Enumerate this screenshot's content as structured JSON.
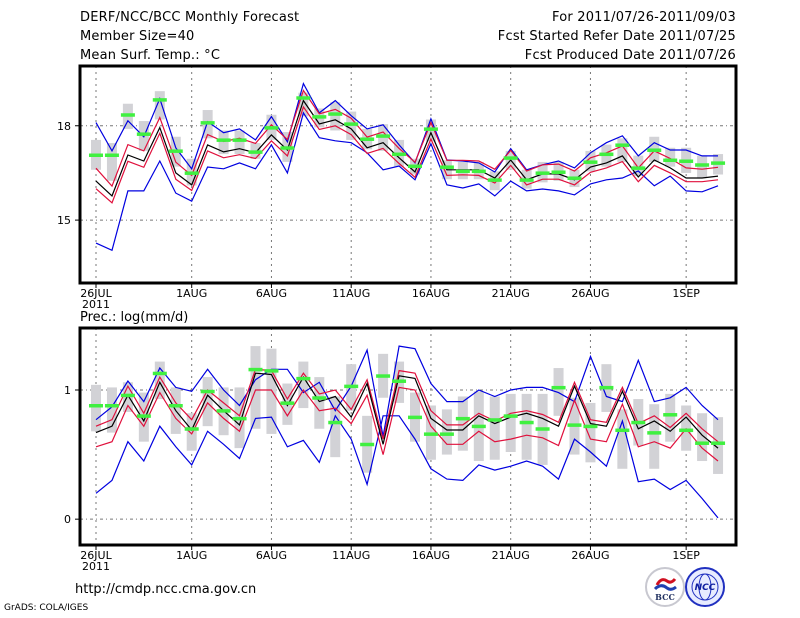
{
  "header": {
    "title": "DERF/NCC/BCC Monthly Forecast",
    "member_size": "Member Size=40",
    "variable": "Mean Surf. Temp.: °C",
    "period": "For 2011/07/26-2011/09/03",
    "started": "Fcst Started Refer Date 2011/07/25",
    "produced": "Fcst Produced Date 2011/07/26"
  },
  "footer": {
    "url": "http://cmdp.ncc.cma.gov.cn",
    "grads": "GrADS: COLA/IGES",
    "logos": [
      {
        "name": "BCC",
        "label": "BCC"
      },
      {
        "name": "NCC",
        "label": "NCC"
      }
    ]
  },
  "colors": {
    "spread_max_min": "#0000e0",
    "quartiles": "#e0103c",
    "ensemble_mean": "#000000",
    "observed_or_clim": "#40f040",
    "climate_range": "#d2d2d6"
  },
  "chart_data": [
    {
      "type": "line",
      "title": "Mean Surf. Temp.: °C",
      "x_start": "2011-07-26",
      "x_end": "2011-09-03",
      "x_ticks": [
        {
          "day": 0,
          "label": "26JUL",
          "sub": "2011"
        },
        {
          "day": 6,
          "label": "1AUG"
        },
        {
          "day": 11,
          "label": "6AUG"
        },
        {
          "day": 16,
          "label": "11AUG"
        },
        {
          "day": 21,
          "label": "16AUG"
        },
        {
          "day": 26,
          "label": "21AUG"
        },
        {
          "day": 31,
          "label": "26AUG"
        },
        {
          "day": 37,
          "label": "1SEP"
        }
      ],
      "y_ticks": [
        15,
        18
      ],
      "ylim": [
        13.0,
        19.9
      ],
      "grid": true,
      "series": [
        {
          "name": "upper",
          "color_key": "spread_max_min",
          "values": [
            18.1,
            17.2,
            18.16,
            17.65,
            18.86,
            17.3,
            16.63,
            18.13,
            17.78,
            17.9,
            17.55,
            18.29,
            17.49,
            19.34,
            18.41,
            18.8,
            18.32,
            17.9,
            18.03,
            17.39,
            16.82,
            18.22,
            16.91,
            16.88,
            16.82,
            16.53,
            17.27,
            16.6,
            16.76,
            16.88,
            16.66,
            17.14,
            17.46,
            17.68,
            17.04,
            17.46,
            17.23,
            17.23,
            17.04,
            17.04
          ]
        },
        {
          "name": "lower",
          "color_key": "spread_max_min",
          "values": [
            14.27,
            14.04,
            15.93,
            15.93,
            16.88,
            15.86,
            15.6,
            16.69,
            16.63,
            16.82,
            16.63,
            17.39,
            16.5,
            18.41,
            17.62,
            17.52,
            17.46,
            17.14,
            16.6,
            16.72,
            16.28,
            17.43,
            16.12,
            16.02,
            16.15,
            15.77,
            16.24,
            15.93,
            15.99,
            15.93,
            15.8,
            16.15,
            16.28,
            16.34,
            16.56,
            16.09,
            16.4,
            15.93,
            15.9,
            16.09
          ]
        },
        {
          "name": "upper-quartile",
          "color_key": "quartiles",
          "values": [
            16.65,
            16.08,
            17.4,
            17.2,
            18.26,
            16.84,
            16.42,
            17.72,
            17.5,
            17.6,
            17.44,
            18.03,
            17.56,
            19.12,
            18.38,
            18.52,
            18.24,
            17.64,
            17.8,
            17.28,
            16.84,
            18.1,
            16.9,
            16.9,
            16.88,
            16.62,
            17.22,
            16.56,
            16.76,
            16.78,
            16.56,
            16.98,
            17.14,
            17.36,
            16.66,
            17.2,
            16.96,
            16.66,
            16.62,
            16.68
          ]
        },
        {
          "name": "ensemble-mean",
          "color_key": "ensemble_mean",
          "values": [
            16.24,
            15.77,
            17.07,
            16.88,
            17.94,
            16.5,
            16.12,
            17.39,
            17.17,
            17.27,
            17.14,
            17.71,
            17.23,
            18.8,
            18.06,
            18.19,
            17.9,
            17.3,
            17.46,
            16.98,
            16.53,
            17.78,
            16.6,
            16.6,
            16.6,
            16.34,
            16.91,
            16.28,
            16.47,
            16.47,
            16.28,
            16.69,
            16.82,
            17.04,
            16.37,
            16.91,
            16.66,
            16.34,
            16.34,
            16.4
          ]
        },
        {
          "name": "lower-quartile",
          "color_key": "quartiles",
          "values": [
            16.0,
            15.55,
            16.87,
            16.68,
            17.76,
            16.3,
            15.94,
            17.2,
            16.98,
            17.08,
            16.96,
            17.52,
            17.04,
            18.6,
            17.88,
            18.0,
            17.72,
            17.12,
            17.28,
            16.8,
            16.36,
            17.58,
            16.42,
            16.44,
            16.42,
            16.18,
            16.74,
            16.12,
            16.3,
            16.3,
            16.12,
            16.52,
            16.66,
            16.86,
            16.22,
            16.74,
            16.5,
            16.22,
            16.22,
            16.28
          ]
        }
      ],
      "markers": {
        "name": "observed",
        "color_key": "observed_or_clim",
        "values": [
          17.07,
          17.07,
          18.35,
          17.74,
          18.83,
          17.2,
          16.5,
          18.1,
          17.55,
          17.55,
          17.17,
          17.94,
          17.3,
          18.89,
          18.29,
          18.38,
          18.06,
          17.58,
          17.68,
          17.1,
          16.72,
          17.9,
          16.69,
          16.56,
          16.56,
          16.28,
          16.98,
          16.28,
          16.5,
          16.53,
          16.34,
          16.85,
          17.1,
          17.39,
          16.66,
          17.23,
          16.91,
          16.88,
          16.76,
          16.82
        ]
      },
      "ranges": {
        "name": "climate-range",
        "color_key": "climate_range",
        "low": [
          16.6,
          16.25,
          17.9,
          17.2,
          18.2,
          16.7,
          16.1,
          17.6,
          17.1,
          17.1,
          16.95,
          17.55,
          16.85,
          18.3,
          17.95,
          17.85,
          17.55,
          17.25,
          17.2,
          16.7,
          16.45,
          17.5,
          16.3,
          16.3,
          16.3,
          15.95,
          16.6,
          16.0,
          16.2,
          16.25,
          16.05,
          16.55,
          16.7,
          16.85,
          16.4,
          16.85,
          16.7,
          16.5,
          16.35,
          16.45
        ],
        "high": [
          17.55,
          17.45,
          18.7,
          18.15,
          19.1,
          17.65,
          16.95,
          18.5,
          17.85,
          17.85,
          17.45,
          18.35,
          17.8,
          19.05,
          18.55,
          18.75,
          18.45,
          17.9,
          18.05,
          17.55,
          16.95,
          18.2,
          16.9,
          16.85,
          16.85,
          16.55,
          17.2,
          16.6,
          16.85,
          16.85,
          16.6,
          17.2,
          17.4,
          17.6,
          17.05,
          17.65,
          17.3,
          17.3,
          17.05,
          17.1
        ]
      }
    },
    {
      "type": "line",
      "title": "Prec.: log(mm/d)",
      "x_start": "2011-07-26",
      "x_end": "2011-09-03",
      "x_ticks": [
        {
          "day": 0,
          "label": "26JUL",
          "sub": "2011"
        },
        {
          "day": 6,
          "label": "1AUG"
        },
        {
          "day": 11,
          "label": "6AUG"
        },
        {
          "day": 16,
          "label": "11AUG"
        },
        {
          "day": 21,
          "label": "16AUG"
        },
        {
          "day": 26,
          "label": "21AUG"
        },
        {
          "day": 31,
          "label": "26AUG"
        },
        {
          "day": 37,
          "label": "1SEP"
        }
      ],
      "y_ticks": [
        0,
        1
      ],
      "ylim": [
        -0.2,
        1.48
      ],
      "grid": true,
      "series": [
        {
          "name": "upper",
          "color_key": "spread_max_min",
          "values": [
            0.77,
            0.87,
            1.07,
            0.91,
            1.17,
            1.02,
            0.99,
            1.16,
            1.0,
            0.88,
            1.08,
            1.16,
            1.16,
            0.98,
            1.06,
            0.84,
            1.03,
            1.31,
            0.64,
            1.34,
            1.32,
            1.05,
            0.91,
            0.91,
            1.0,
            0.95,
            1.0,
            1.02,
            1.02,
            0.98,
            0.91,
            1.26,
            0.95,
            0.91,
            1.23,
            0.91,
            0.94,
            1.02,
            0.88,
            0.77
          ]
        },
        {
          "name": "lower",
          "color_key": "spread_max_min",
          "values": [
            0.2,
            0.3,
            0.6,
            0.45,
            0.72,
            0.56,
            0.42,
            0.68,
            0.58,
            0.47,
            0.78,
            0.79,
            0.56,
            0.61,
            0.44,
            0.8,
            0.62,
            0.27,
            0.8,
            0.8,
            0.62,
            0.39,
            0.31,
            0.3,
            0.42,
            0.38,
            0.41,
            0.45,
            0.41,
            0.31,
            0.62,
            0.52,
            0.41,
            0.76,
            0.29,
            0.31,
            0.23,
            0.3,
            0.16,
            0.01
          ]
        },
        {
          "name": "upper-quartile",
          "color_key": "quartiles",
          "values": [
            0.72,
            0.77,
            1.03,
            0.82,
            1.1,
            0.9,
            0.77,
            1.0,
            0.9,
            0.8,
            1.16,
            1.15,
            0.93,
            1.13,
            0.97,
            1.0,
            0.85,
            1.08,
            0.62,
            1.15,
            1.13,
            0.84,
            0.73,
            0.73,
            0.82,
            0.76,
            0.82,
            0.84,
            0.81,
            0.75,
            1.06,
            0.77,
            0.75,
            1.02,
            0.74,
            0.8,
            0.71,
            0.82,
            0.7,
            0.6
          ]
        },
        {
          "name": "ensemble-mean",
          "color_key": "ensemble_mean",
          "values": [
            0.67,
            0.72,
            0.96,
            0.76,
            1.06,
            0.84,
            0.69,
            0.96,
            0.84,
            0.73,
            1.13,
            1.12,
            0.88,
            1.1,
            0.91,
            0.95,
            0.79,
            1.05,
            0.58,
            1.11,
            1.09,
            0.78,
            0.69,
            0.69,
            0.8,
            0.74,
            0.79,
            0.82,
            0.78,
            0.72,
            1.03,
            0.74,
            0.72,
            0.99,
            0.7,
            0.76,
            0.68,
            0.79,
            0.65,
            0.55
          ]
        },
        {
          "name": "lower-quartile",
          "color_key": "quartiles",
          "values": [
            0.56,
            0.6,
            0.88,
            0.72,
            0.98,
            0.78,
            0.66,
            0.9,
            0.78,
            0.68,
            1.0,
            1.0,
            0.8,
            1.0,
            0.84,
            0.86,
            0.74,
            0.96,
            0.5,
            1.02,
            1.0,
            0.72,
            0.58,
            0.58,
            0.68,
            0.6,
            0.62,
            0.65,
            0.63,
            0.57,
            0.92,
            0.62,
            0.6,
            0.89,
            0.56,
            0.6,
            0.55,
            0.7,
            0.55,
            0.45
          ]
        }
      ],
      "markers": {
        "name": "observed",
        "color_key": "observed_or_clim",
        "values": [
          0.88,
          0.88,
          0.96,
          0.8,
          1.13,
          0.88,
          0.7,
          0.99,
          0.84,
          0.78,
          1.16,
          1.15,
          0.9,
          1.09,
          0.94,
          0.75,
          1.03,
          0.58,
          1.11,
          1.07,
          0.79,
          0.66,
          0.66,
          0.78,
          0.72,
          0.77,
          0.8,
          0.75,
          0.7,
          1.02,
          0.73,
          0.72,
          1.02,
          0.69,
          0.75,
          0.67,
          0.81,
          0.69,
          0.59,
          0.59
        ]
      },
      "ranges": {
        "name": "climate-range",
        "color_key": "climate_range",
        "low": [
          0.68,
          0.67,
          0.83,
          0.6,
          0.93,
          0.66,
          0.53,
          0.72,
          0.65,
          0.55,
          0.7,
          0.66,
          0.73,
          0.86,
          0.7,
          0.48,
          0.84,
          0.36,
          0.94,
          0.9,
          0.6,
          0.46,
          0.5,
          0.53,
          0.45,
          0.46,
          0.52,
          0.46,
          0.42,
          0.8,
          0.5,
          0.44,
          0.83,
          0.39,
          0.57,
          0.39,
          0.6,
          0.53,
          0.45,
          0.35
        ],
        "high": [
          1.04,
          1.02,
          1.06,
          0.98,
          1.22,
          1.02,
          0.82,
          1.1,
          1.02,
          1.02,
          1.34,
          1.32,
          1.05,
          1.22,
          1.1,
          0.95,
          1.2,
          0.8,
          1.28,
          1.22,
          0.98,
          0.88,
          0.85,
          0.95,
          0.99,
          0.95,
          0.97,
          0.97,
          0.97,
          1.17,
          0.94,
          0.9,
          1.2,
          0.85,
          0.93,
          0.89,
          0.97,
          0.88,
          0.82,
          0.79
        ]
      }
    }
  ]
}
